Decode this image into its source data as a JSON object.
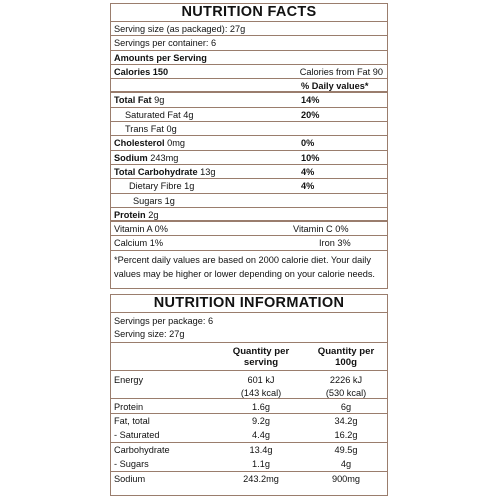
{
  "facts": {
    "title": "NUTRITION FACTS",
    "serving_size": "Serving size (as packaged): 27g",
    "servings_per_container": "Servings per container: 6",
    "amounts_per_serving": "Amounts per Serving",
    "calories": "Calories 150",
    "calories_from_fat": "Calories from Fat 90",
    "daily_values_header": "% Daily values*",
    "rows": [
      {
        "label_bold": "Total Fat",
        "amount": " 9g",
        "dv": "14%"
      },
      {
        "label": "Saturated Fat 4g",
        "dv": "20%"
      },
      {
        "label": "Trans Fat 0g",
        "dv": ""
      },
      {
        "label_bold": "Cholesterol",
        "amount": " 0mg",
        "dv": "0%"
      },
      {
        "label_bold": "Sodium",
        "amount": " 243mg",
        "dv": "10%"
      },
      {
        "label_bold": "Total Carbohydrate",
        "amount": " 13g",
        "dv": "4%"
      },
      {
        "label": "Dietary Fibre 1g",
        "dv": "4%"
      },
      {
        "label": "Sugars 1g",
        "dv": ""
      },
      {
        "label_bold": "Protein",
        "amount": " 2g",
        "dv": ""
      }
    ],
    "vitamin_a": "Vitamin A 0%",
    "vitamin_c": "Vitamin C 0%",
    "calcium": "Calcium 1%",
    "iron": "Iron 3%",
    "footnote": "*Percent daily values are based on 2000 calorie diet. Your daily values may be higher or lower depending on your calorie needs."
  },
  "info": {
    "title": "NUTRITION INFORMATION",
    "servings_per_package": "Servings per package: 6",
    "serving_size": "Serving size: 27g",
    "col1_header_1": "Quantity per",
    "col1_header_2": "serving",
    "col2_header_1": "Quantity per",
    "col2_header_2": "100g",
    "energy_label": "Energy",
    "energy_serving_kj": "601 kJ",
    "energy_serving_kcal": "(143 kcal)",
    "energy_100g_kj": "2226 kJ",
    "energy_100g_kcal": "(530 kcal)",
    "protein_label": "Protein",
    "protein_serving": "1.6g",
    "protein_100g": "6g",
    "fat_label": "Fat, total",
    "fat_serving": "9.2g",
    "fat_100g": "34.2g",
    "sat_label": "- Saturated",
    "sat_serving": "4.4g",
    "sat_100g": "16.2g",
    "carb_label": "Carbohydrate",
    "carb_serving": "13.4g",
    "carb_100g": "49.5g",
    "sugars_label": "- Sugars",
    "sugars_serving": "1.1g",
    "sugars_100g": "4g",
    "sodium_label": "Sodium",
    "sodium_serving": "243.2mg",
    "sodium_100g": "900mg"
  }
}
